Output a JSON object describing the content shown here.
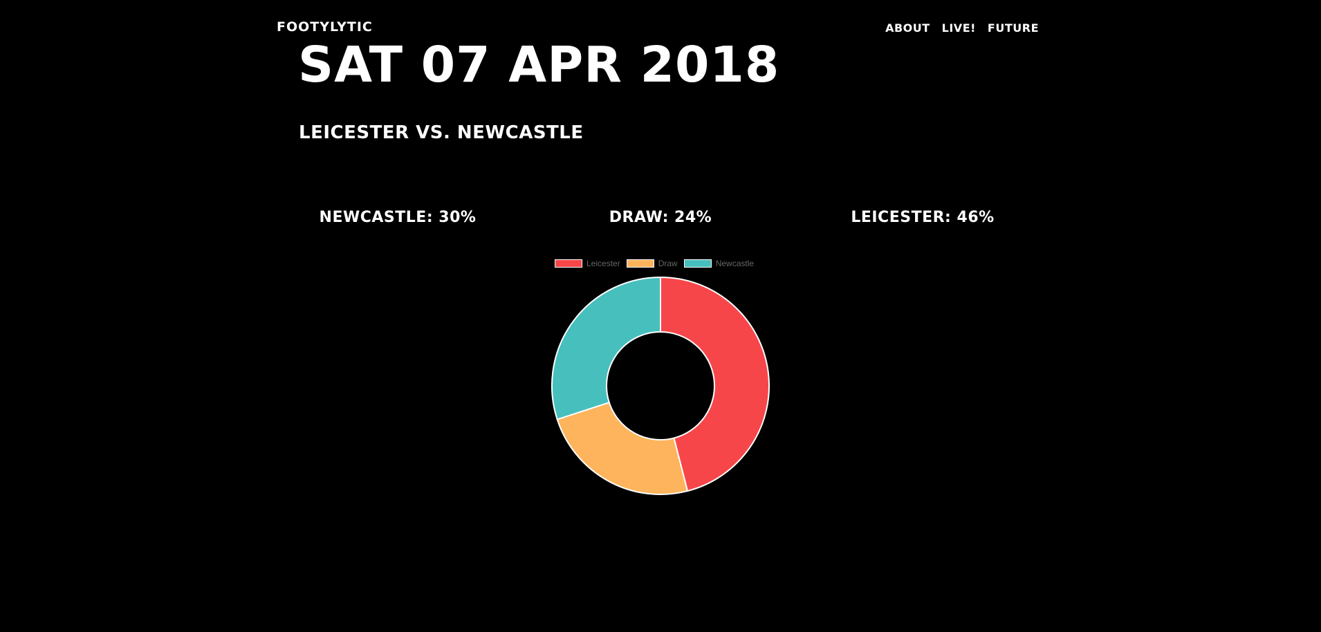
{
  "header": {
    "brand": "FOOTYLYTIC",
    "nav": [
      {
        "label": "ABOUT"
      },
      {
        "label": "LIVE!"
      },
      {
        "label": "FUTURE"
      }
    ]
  },
  "match": {
    "date": "SAT 07 APR 2018",
    "title": "LEICESTER VS. NEWCASTLE",
    "odds": {
      "away": "NEWCASTLE: 30%",
      "draw": "DRAW: 24%",
      "home": "LEICESTER: 46%"
    }
  },
  "chart_data": {
    "type": "pie",
    "style": "doughnut",
    "legend_position": "top",
    "categories": [
      "Leicester",
      "Draw",
      "Newcastle"
    ],
    "values": [
      46,
      24,
      30
    ],
    "colors": [
      "#f7464a",
      "#fdb45c",
      "#46bfbd"
    ],
    "title": ""
  }
}
